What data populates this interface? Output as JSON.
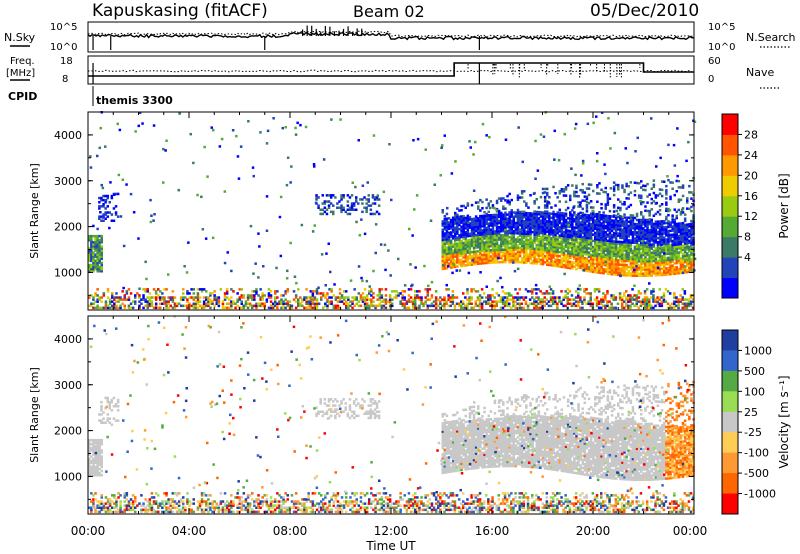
{
  "header": {
    "station": "Kapuskasing (fitACF)",
    "beam": "Beam 02",
    "date": "05/Dec/2010"
  },
  "params": {
    "nsky_label": "N.Sky",
    "nsky_ticks": [
      "10^5",
      "10^0"
    ],
    "nsearch_label": "N.Search",
    "nsearch_ticks": [
      "10^5",
      "10^0"
    ],
    "freq_label_line1": "Freq.",
    "freq_label_line2": "[MHz]",
    "freq_ticks": [
      "18",
      "8"
    ],
    "nave_label": "Nave",
    "nave_ticks": [
      "60",
      "0"
    ],
    "cpid_label": "CPID",
    "cpid_value": "themis 3300"
  },
  "axes": {
    "x_ticks": [
      "00:00",
      "04:00",
      "08:00",
      "12:00",
      "16:00",
      "20:00",
      "00:00"
    ],
    "xlabel": "Time UT",
    "ylabel": "Slant Range [km]",
    "y_ticks": [
      "4000",
      "3000",
      "2000",
      "1000"
    ]
  },
  "power_scale": {
    "label": "Power [dB]",
    "ticks": [
      "28",
      "24",
      "20",
      "16",
      "12",
      "8",
      "4"
    ],
    "colors": [
      "#0000ff",
      "#2244bb",
      "#3a7a66",
      "#55aa33",
      "#99cc11",
      "#eecc00",
      "#ff9900",
      "#ff5500",
      "#ff0000"
    ]
  },
  "velocity_scale": {
    "label": "Velocity [m s⁻¹]",
    "ticks": [
      "1000",
      "500",
      "100",
      "25",
      "-25",
      "-100",
      "-500",
      "-1000"
    ],
    "colors": [
      "#1f3fa0",
      "#3366cc",
      "#55aa44",
      "#99dd55",
      "#c8c8c8",
      "#ffcc55",
      "#ff9933",
      "#ff6600",
      "#ff0000"
    ]
  },
  "chart_data": [
    {
      "type": "heatmap",
      "title": "Power",
      "xlabel": "Time UT",
      "ylabel": "Slant Range [km]",
      "xlim": [
        0,
        24
      ],
      "ylim": [
        180,
        4500
      ],
      "colorbar": {
        "label": "Power [dB]",
        "range": [
          0,
          32
        ]
      },
      "regions": [
        {
          "t": [
            0.0,
            0.5
          ],
          "r": [
            1000,
            1800
          ],
          "level": "mid"
        },
        {
          "t": [
            0.5,
            1.2
          ],
          "r": [
            2200,
            2700
          ],
          "level": "low"
        },
        {
          "t": [
            9.0,
            11.5
          ],
          "r": [
            2200,
            2700
          ],
          "level": "low"
        },
        {
          "t": [
            14.0,
            24.0
          ],
          "r": [
            1000,
            2200
          ],
          "level": "high"
        },
        {
          "t": [
            14.0,
            24.0
          ],
          "r": [
            2200,
            3000
          ],
          "level": "low"
        },
        {
          "t": [
            0.0,
            24.0
          ],
          "r": [
            180,
            600
          ],
          "level": "ground"
        }
      ]
    },
    {
      "type": "heatmap",
      "title": "Velocity",
      "xlabel": "Time UT",
      "ylabel": "Slant Range [km]",
      "xlim": [
        0,
        24
      ],
      "ylim": [
        180,
        4500
      ],
      "colorbar": {
        "label": "Velocity [m s⁻¹]",
        "range": [
          -1000,
          1000
        ]
      },
      "regions": [
        {
          "t": [
            0.0,
            0.5
          ],
          "r": [
            1000,
            1800
          ],
          "level": "near-zero"
        },
        {
          "t": [
            9.0,
            11.5
          ],
          "r": [
            2200,
            2700
          ],
          "level": "near-zero"
        },
        {
          "t": [
            14.0,
            22.5
          ],
          "r": [
            1000,
            2200
          ],
          "level": "near-zero"
        },
        {
          "t": [
            22.8,
            24.0
          ],
          "r": [
            1300,
            3200
          ],
          "level": "negative"
        },
        {
          "t": [
            0.0,
            24.0
          ],
          "r": [
            180,
            600
          ],
          "level": "mixed"
        }
      ]
    }
  ]
}
